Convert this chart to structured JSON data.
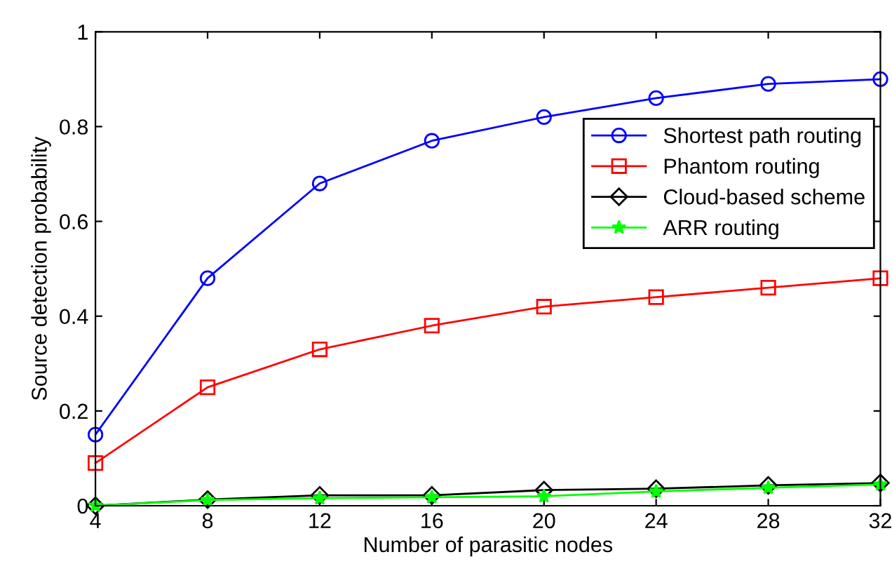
{
  "chart_data": {
    "type": "line",
    "xlabel": "Number of parasitic nodes",
    "ylabel": "Source detection probability",
    "x": [
      4,
      8,
      12,
      16,
      20,
      24,
      28,
      32
    ],
    "series": [
      {
        "name": "Shortest path routing",
        "color": "#0000ff",
        "marker": "circle",
        "values": [
          0.15,
          0.48,
          0.68,
          0.77,
          0.82,
          0.86,
          0.89,
          0.9
        ]
      },
      {
        "name": "Phantom routing",
        "color": "#ff0000",
        "marker": "square",
        "values": [
          0.09,
          0.25,
          0.33,
          0.38,
          0.42,
          0.44,
          0.46,
          0.48
        ]
      },
      {
        "name": "Cloud-based scheme",
        "color": "#000000",
        "marker": "diamond",
        "values": [
          0,
          0.013,
          0.022,
          0.022,
          0.033,
          0.036,
          0.043,
          0.048
        ]
      },
      {
        "name": "ARR routing",
        "color": "#00ff00",
        "marker": "star",
        "values": [
          0,
          0.012,
          0.016,
          0.018,
          0.02,
          0.03,
          0.038,
          0.045
        ]
      }
    ],
    "xlim": [
      4,
      32
    ],
    "xticks": [
      4,
      8,
      12,
      16,
      20,
      24,
      28,
      32
    ],
    "ylim": [
      0,
      1
    ],
    "yticks": [
      0,
      0.2,
      0.4,
      0.6,
      0.8,
      1
    ],
    "grid": false,
    "legend": "top right",
    "line_style": "solid"
  }
}
